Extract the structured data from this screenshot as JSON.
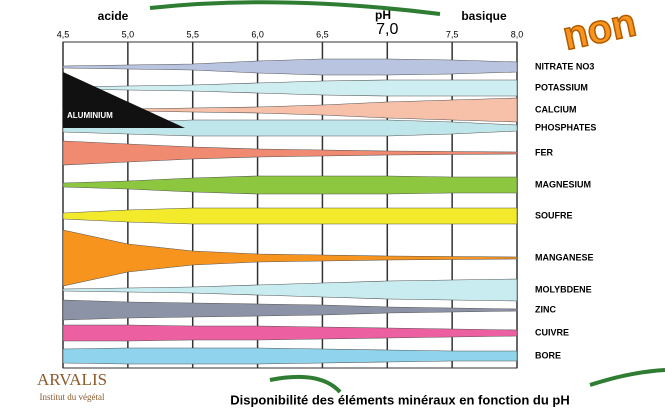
{
  "axis": {
    "left_label": "acide",
    "center_label": "pH",
    "right_label": "basique",
    "ticks": [
      "4,5",
      "5,0",
      "5,5",
      "6,0",
      "6,5",
      "7,0",
      "7,5",
      "8,0"
    ]
  },
  "elements": [
    "NITRATE NO3",
    "POTASSIUM",
    "CALCIUM",
    "PHOSPHATES",
    "FER",
    "MAGNESIUM",
    "SOUFRE",
    "MANGANESE",
    "MOLYBDENE",
    "ZINC",
    "CUIVRE",
    "BORE"
  ],
  "aluminium": "ALUMINIUM",
  "stamp": "non",
  "logo": {
    "name": "ARVALIS",
    "subtitle": "Institut du végétal"
  },
  "caption": "Disponibilité des éléments minéraux en fonction du pH"
}
